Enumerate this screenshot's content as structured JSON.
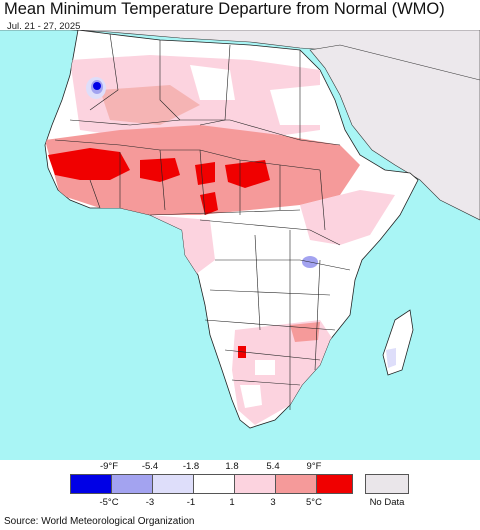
{
  "title": "Mean Minimum Temperature Departure from Normal (WMO)",
  "date_range": "Jul. 21 - 27, 2025",
  "source": "Source: World Meteorological Organization",
  "legend": {
    "fahrenheit_labels": [
      "-9°F",
      "-5.4",
      "-1.8",
      "1.8",
      "5.4",
      "9°F"
    ],
    "celsius_labels": [
      "-5°C",
      "-3",
      "-1",
      "1",
      "3",
      "5°C"
    ],
    "colors": [
      "#0000e6",
      "#a3a3f0",
      "#dedefa",
      "#ffffff",
      "#fcd3df",
      "#f59a9a",
      "#f00000"
    ],
    "no_data_label": "No Data",
    "no_data_color": "#eae6ea"
  },
  "colors": {
    "ocean": "#a9f5f5",
    "land_default": "#ffffff",
    "no_data": "#ece8ec",
    "border": "#333333"
  }
}
